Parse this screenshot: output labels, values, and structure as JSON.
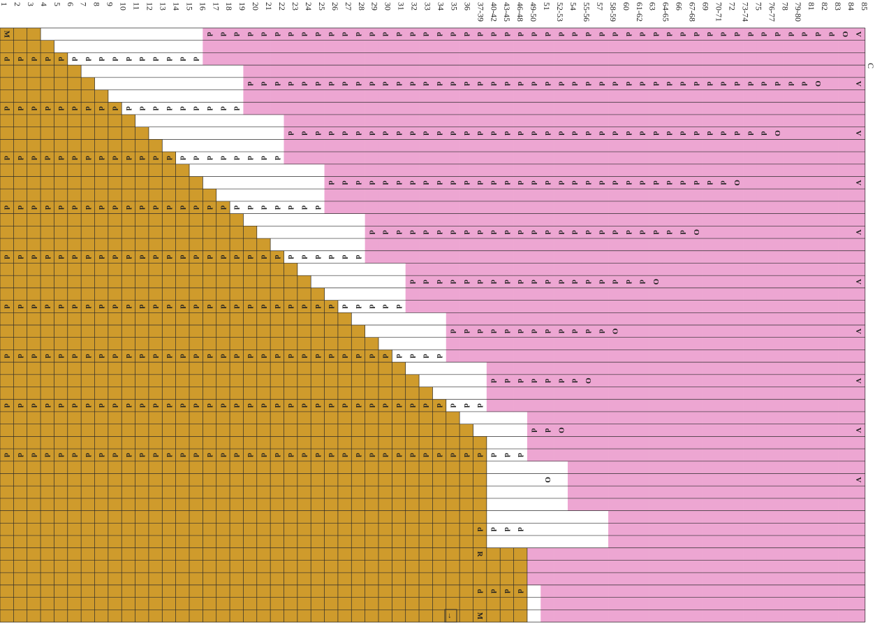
{
  "chart_data": {
    "type": "table",
    "title": "",
    "orientation": "rotated-90-clockwise",
    "colors": {
      "main": "#cf9b2c",
      "contrast": "#eda6d2",
      "grid": "#2b2b2b"
    },
    "row_labels": [
      "1",
      "2",
      "3",
      "4",
      "5",
      "6",
      "7",
      "8",
      "9",
      "10",
      "11",
      "12",
      "13",
      "14",
      "15",
      "16",
      "17",
      "18",
      "19",
      "20",
      "21",
      "22",
      "23",
      "24",
      "25",
      "26",
      "27",
      "28",
      "29",
      "30",
      "31",
      "32",
      "33",
      "34",
      "35",
      "36",
      "37-39",
      "40-42",
      "43-45",
      "46-48",
      "49-50",
      "51",
      "52-53",
      "54",
      "55-56",
      "57",
      "58-59",
      "60",
      "61-62",
      "63",
      "64-65",
      "66",
      "67-68",
      "69",
      "70-71",
      "72",
      "73-74",
      "75",
      "76-77",
      "78",
      "79-80",
      "81",
      "82",
      "83",
      "84",
      "85"
    ],
    "symbols": {
      "purl": "d",
      "yarn_over": "O",
      "decrease": "V",
      "marker": "M",
      "repeat": "R",
      "start": "→"
    },
    "extra_label": "C"
  }
}
